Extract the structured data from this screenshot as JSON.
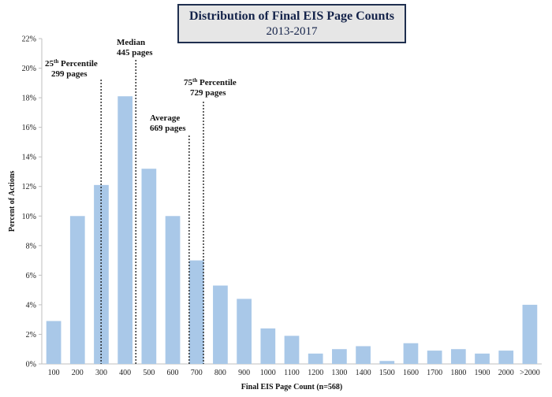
{
  "chart_data": {
    "type": "bar",
    "title": "Distribution of Final EIS Page Counts",
    "subtitle": "2013-2017",
    "xlabel": "Final EIS Page Count (n=568)",
    "ylabel": "Percent of Actions",
    "ylim": [
      0,
      22
    ],
    "yticks": [
      "0%",
      "2%",
      "4%",
      "6%",
      "8%",
      "10%",
      "12%",
      "14%",
      "16%",
      "18%",
      "20%",
      "22%"
    ],
    "categories": [
      "100",
      "200",
      "300",
      "400",
      "500",
      "600",
      "700",
      "800",
      "900",
      "1000",
      "1100",
      "1200",
      "1300",
      "1400",
      "1500",
      "1600",
      "1700",
      "1800",
      "1900",
      "2000",
      ">2000"
    ],
    "values": [
      2.9,
      10.0,
      12.1,
      18.1,
      13.2,
      10.0,
      7.0,
      5.3,
      4.4,
      2.4,
      1.9,
      0.7,
      1.0,
      1.2,
      0.2,
      1.4,
      0.9,
      1.0,
      0.7,
      0.9,
      4.0
    ],
    "bar_color": "#a9c8e8",
    "annotations": [
      {
        "id": "p25",
        "line1": "25",
        "sup": "th",
        "line1_rest": " Percentile",
        "line2": "299 pages",
        "value": 299
      },
      {
        "id": "median",
        "line1": "Median",
        "sup": "",
        "line1_rest": "",
        "line2": "445 pages",
        "value": 445
      },
      {
        "id": "avg",
        "line1": "Average",
        "sup": "",
        "line1_rest": "",
        "line2": "669 pages",
        "value": 669
      },
      {
        "id": "p75",
        "line1": "75",
        "sup": "th",
        "line1_rest": " Percentile",
        "line2": "729 pages",
        "value": 729
      }
    ]
  }
}
